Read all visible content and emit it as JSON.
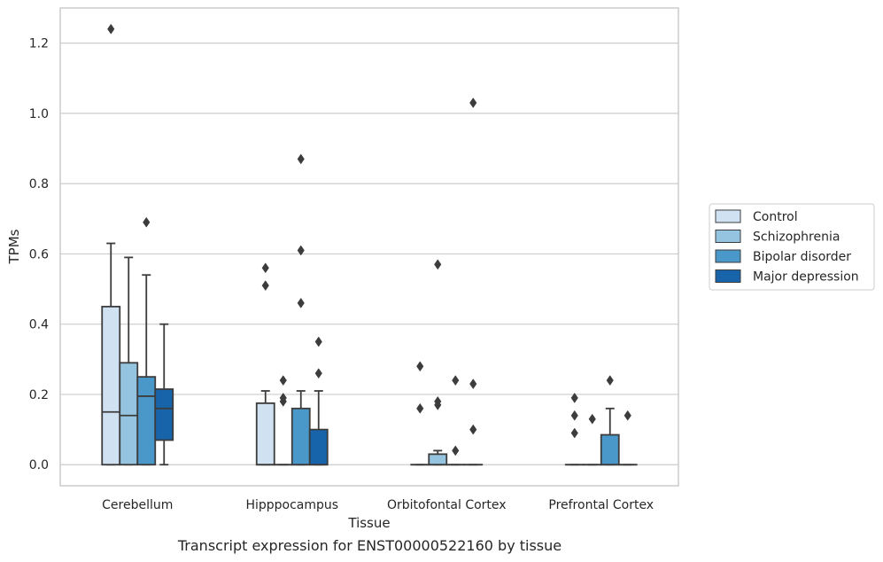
{
  "caption": "Transcript expression for ENST00000522160 by tissue",
  "chart_data": {
    "type": "box",
    "xlabel": "Tissue",
    "ylabel": "TPMs",
    "ylim": [
      -0.06,
      1.3
    ],
    "yticks": [
      "0.0",
      "0.2",
      "0.4",
      "0.6",
      "0.8",
      "1.0",
      "1.2"
    ],
    "grid": "horizontal",
    "legend_position": "right",
    "categories": [
      "Cerebellum",
      "Hipppocampus",
      "Orbitofontal Cortex",
      "Prefrontal Cortex"
    ],
    "series": [
      {
        "name": "Control",
        "color": "#d0e1f2",
        "boxes": [
          {
            "whislo": 0.0,
            "q1": 0.0,
            "med": 0.15,
            "q3": 0.45,
            "whishi": 0.63,
            "fliers": [
              1.24
            ]
          },
          {
            "whislo": 0.0,
            "q1": 0.0,
            "med": 0.0,
            "q3": 0.175,
            "whishi": 0.21,
            "fliers": [
              0.51,
              0.56
            ]
          },
          {
            "whislo": 0.0,
            "q1": 0.0,
            "med": 0.0,
            "q3": 0.0,
            "whishi": 0.0,
            "fliers": [
              0.16,
              0.28
            ]
          },
          {
            "whislo": 0.0,
            "q1": 0.0,
            "med": 0.0,
            "q3": 0.0,
            "whishi": 0.0,
            "fliers": [
              0.09,
              0.14,
              0.19
            ]
          }
        ]
      },
      {
        "name": "Schizophrenia",
        "color": "#94c4df",
        "boxes": [
          {
            "whislo": 0.0,
            "q1": 0.0,
            "med": 0.14,
            "q3": 0.29,
            "whishi": 0.59,
            "fliers": []
          },
          {
            "whislo": 0.0,
            "q1": 0.0,
            "med": 0.0,
            "q3": 0.0,
            "whishi": 0.0,
            "fliers": [
              0.18,
              0.19,
              0.24
            ]
          },
          {
            "whislo": 0.0,
            "q1": 0.0,
            "med": 0.0,
            "q3": 0.03,
            "whishi": 0.04,
            "fliers": [
              0.17,
              0.18,
              0.57
            ]
          },
          {
            "whislo": 0.0,
            "q1": 0.0,
            "med": 0.0,
            "q3": 0.0,
            "whishi": 0.0,
            "fliers": [
              0.13
            ]
          }
        ]
      },
      {
        "name": "Bipolar disorder",
        "color": "#4a98c9",
        "boxes": [
          {
            "whislo": 0.0,
            "q1": 0.0,
            "med": 0.195,
            "q3": 0.25,
            "whishi": 0.54,
            "fliers": [
              0.69
            ]
          },
          {
            "whislo": 0.0,
            "q1": 0.0,
            "med": 0.0,
            "q3": 0.16,
            "whishi": 0.21,
            "fliers": [
              0.46,
              0.61,
              0.87
            ]
          },
          {
            "whislo": 0.0,
            "q1": 0.0,
            "med": 0.0,
            "q3": 0.0,
            "whishi": 0.0,
            "fliers": [
              0.04,
              0.24
            ]
          },
          {
            "whislo": 0.0,
            "q1": 0.0,
            "med": 0.0,
            "q3": 0.085,
            "whishi": 0.16,
            "fliers": [
              0.24
            ]
          }
        ]
      },
      {
        "name": "Major depression",
        "color": "#1764ab",
        "boxes": [
          {
            "whislo": 0.0,
            "q1": 0.07,
            "med": 0.16,
            "q3": 0.215,
            "whishi": 0.4,
            "fliers": []
          },
          {
            "whislo": 0.0,
            "q1": 0.0,
            "med": 0.0,
            "q3": 0.1,
            "whishi": 0.21,
            "fliers": [
              0.26,
              0.35
            ]
          },
          {
            "whislo": 0.0,
            "q1": 0.0,
            "med": 0.0,
            "q3": 0.0,
            "whishi": 0.0,
            "fliers": [
              0.1,
              0.23,
              1.03
            ]
          },
          {
            "whislo": 0.0,
            "q1": 0.0,
            "med": 0.0,
            "q3": 0.0,
            "whishi": 0.0,
            "fliers": [
              0.14
            ]
          }
        ]
      }
    ]
  }
}
